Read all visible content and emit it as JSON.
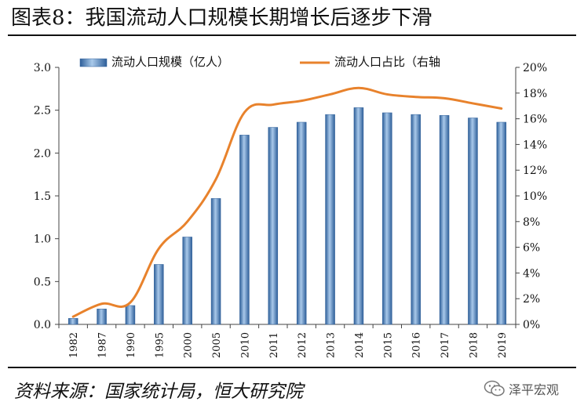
{
  "title": "图表8：我国流动人口规模长期增长后逐步下滑",
  "source": "资料来源：国家统计局，恒大研究院",
  "watermark": {
    "text": "泽平宏观",
    "icon": "wechat-icon"
  },
  "colors": {
    "bar": "#4A86C6",
    "bar_dark": "#2E5F99",
    "bar_light": "#A9C9EA",
    "line": "#E8822C",
    "axis": "#444444"
  },
  "chart_data": {
    "type": "bar",
    "categories": [
      "1982",
      "1987",
      "1990",
      "1995",
      "2000",
      "2005",
      "2010",
      "2011",
      "2012",
      "2013",
      "2014",
      "2015",
      "2016",
      "2017",
      "2018",
      "2019"
    ],
    "series": [
      {
        "name": "流动人口规模（亿人）",
        "type": "bar",
        "axis": "left",
        "values": [
          0.07,
          0.18,
          0.22,
          0.7,
          1.02,
          1.47,
          2.21,
          2.3,
          2.36,
          2.45,
          2.53,
          2.47,
          2.45,
          2.44,
          2.41,
          2.36
        ]
      },
      {
        "name": "流动人口占比（右轴",
        "type": "line",
        "axis": "right",
        "values": [
          0.6,
          1.6,
          1.7,
          5.9,
          8.0,
          11.3,
          16.5,
          17.1,
          17.4,
          17.9,
          18.4,
          17.9,
          17.7,
          17.6,
          17.2,
          16.8
        ]
      }
    ],
    "y_left": {
      "ylim": [
        0,
        3.0
      ],
      "ticks": [
        "0.0",
        "0.5",
        "1.0",
        "1.5",
        "2.0",
        "2.5",
        "3.0"
      ],
      "tick_values": [
        0,
        0.5,
        1.0,
        1.5,
        2.0,
        2.5,
        3.0
      ]
    },
    "y_right": {
      "ylim": [
        0,
        20
      ],
      "ticks": [
        "0%",
        "2%",
        "4%",
        "6%",
        "8%",
        "10%",
        "12%",
        "14%",
        "16%",
        "18%",
        "20%"
      ],
      "tick_values": [
        0,
        2,
        4,
        6,
        8,
        10,
        12,
        14,
        16,
        18,
        20
      ]
    },
    "legend_placement": "top",
    "grid": false
  }
}
